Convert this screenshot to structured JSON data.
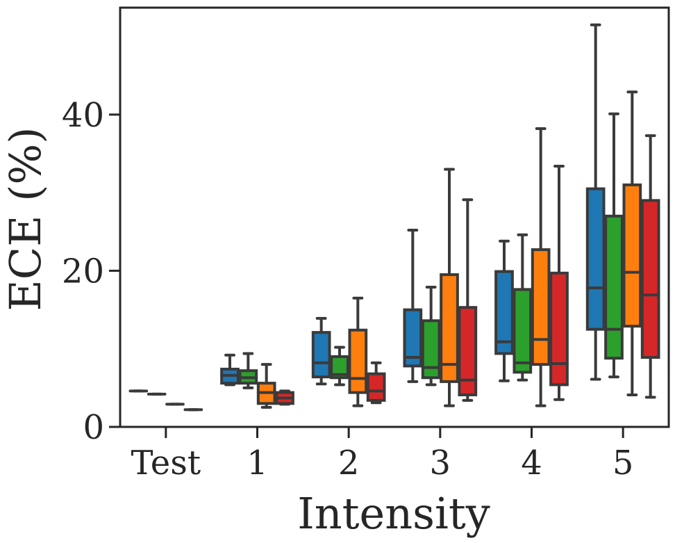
{
  "chart_data": {
    "type": "boxplot",
    "xlabel": "Intensity",
    "ylabel": "ECE (%)",
    "categories": [
      "Test",
      "1",
      "2",
      "3",
      "4",
      "5"
    ],
    "ylim": [
      0,
      53.7
    ],
    "yticks": [
      0,
      20,
      40
    ],
    "colors": [
      "#1f77b4",
      "#2ca02c",
      "#ff7f0e",
      "#d62728"
    ],
    "series": [
      {
        "color": "#1f77b4",
        "boxes": [
          {
            "whislo": 4.6,
            "q1": 4.6,
            "med": 4.6,
            "q3": 4.6,
            "whishi": 4.6
          },
          {
            "whislo": 5.4,
            "q1": 5.6,
            "med": 6.6,
            "q3": 7.4,
            "whishi": 9.2
          },
          {
            "whislo": 5.5,
            "q1": 6.4,
            "med": 8.2,
            "q3": 12.1,
            "whishi": 13.9
          },
          {
            "whislo": 5.8,
            "q1": 7.8,
            "med": 8.9,
            "q3": 15.0,
            "whishi": 25.2
          },
          {
            "whislo": 5.9,
            "q1": 9.4,
            "med": 10.9,
            "q3": 19.9,
            "whishi": 23.8
          },
          {
            "whislo": 6.1,
            "q1": 12.5,
            "med": 17.8,
            "q3": 30.5,
            "whishi": 51.5
          }
        ]
      },
      {
        "color": "#2ca02c",
        "boxes": [
          {
            "whislo": 4.2,
            "q1": 4.2,
            "med": 4.2,
            "q3": 4.2,
            "whishi": 4.2
          },
          {
            "whislo": 5.0,
            "q1": 5.6,
            "med": 6.3,
            "q3": 7.2,
            "whishi": 9.4
          },
          {
            "whislo": 5.4,
            "q1": 6.3,
            "med": 6.7,
            "q3": 9.0,
            "whishi": 10.2
          },
          {
            "whislo": 5.4,
            "q1": 6.3,
            "med": 7.6,
            "q3": 13.6,
            "whishi": 17.9
          },
          {
            "whislo": 6.0,
            "q1": 7.0,
            "med": 8.2,
            "q3": 17.6,
            "whishi": 24.6
          },
          {
            "whislo": 6.4,
            "q1": 8.8,
            "med": 12.5,
            "q3": 27.0,
            "whishi": 40.1
          }
        ]
      },
      {
        "color": "#ff7f0e",
        "boxes": [
          {
            "whislo": 2.9,
            "q1": 2.9,
            "med": 2.9,
            "q3": 2.9,
            "whishi": 2.9
          },
          {
            "whislo": 2.5,
            "q1": 3.0,
            "med": 4.4,
            "q3": 5.6,
            "whishi": 8.0
          },
          {
            "whislo": 2.7,
            "q1": 4.4,
            "med": 6.2,
            "q3": 12.4,
            "whishi": 16.5
          },
          {
            "whislo": 2.7,
            "q1": 5.8,
            "med": 8.0,
            "q3": 19.5,
            "whishi": 33.0
          },
          {
            "whislo": 2.7,
            "q1": 8.0,
            "med": 11.2,
            "q3": 22.7,
            "whishi": 38.2
          },
          {
            "whislo": 4.1,
            "q1": 12.9,
            "med": 19.8,
            "q3": 31.0,
            "whishi": 42.9
          }
        ]
      },
      {
        "color": "#d62728",
        "boxes": [
          {
            "whislo": 2.2,
            "q1": 2.2,
            "med": 2.2,
            "q3": 2.2,
            "whishi": 2.2
          },
          {
            "whislo": 2.9,
            "q1": 3.0,
            "med": 3.7,
            "q3": 4.4,
            "whishi": 4.6
          },
          {
            "whislo": 3.1,
            "q1": 3.4,
            "med": 4.6,
            "q3": 6.8,
            "whishi": 8.2
          },
          {
            "whislo": 3.4,
            "q1": 4.1,
            "med": 6.0,
            "q3": 15.3,
            "whishi": 29.1
          },
          {
            "whislo": 3.5,
            "q1": 5.4,
            "med": 8.1,
            "q3": 19.7,
            "whishi": 33.4
          },
          {
            "whislo": 3.8,
            "q1": 8.9,
            "med": 16.9,
            "q3": 29.0,
            "whishi": 37.3
          }
        ]
      }
    ]
  }
}
